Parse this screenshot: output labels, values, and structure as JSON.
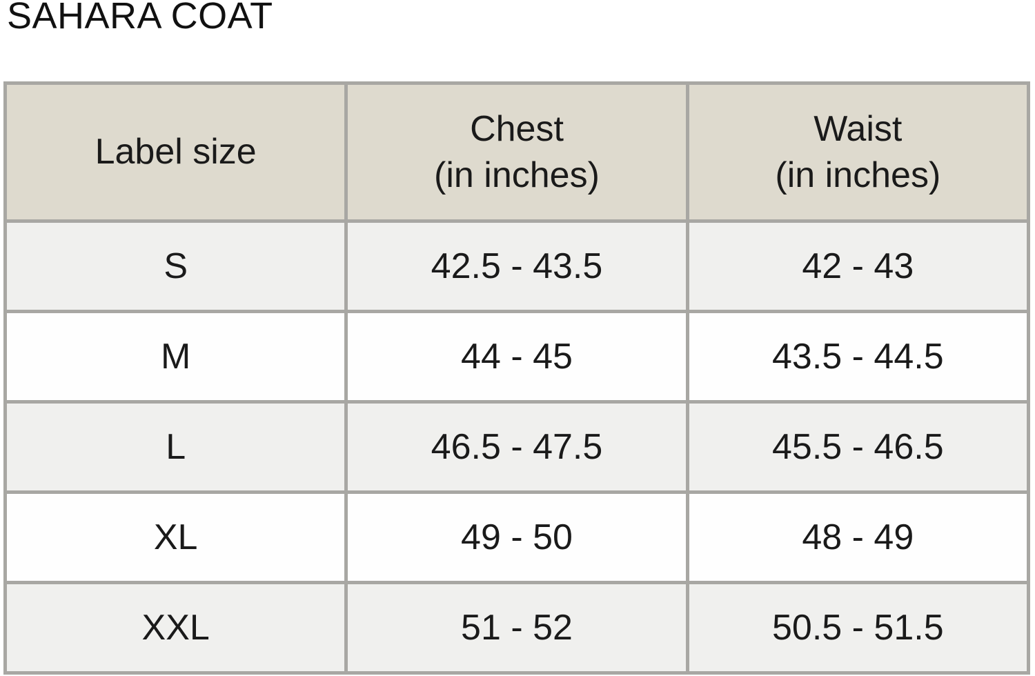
{
  "page_title": "SAHARA COAT",
  "table": {
    "headers": [
      {
        "line1": "Label size",
        "line2": ""
      },
      {
        "line1": "Chest",
        "line2": "(in inches)"
      },
      {
        "line1": "Waist",
        "line2": "(in inches)"
      }
    ],
    "rows": [
      {
        "label": "S",
        "chest": "42.5 - 43.5",
        "waist": "42 - 43"
      },
      {
        "label": "M",
        "chest": "44 - 45",
        "waist": "43.5 - 44.5"
      },
      {
        "label": "L",
        "chest": "46.5 - 47.5",
        "waist": "45.5 - 46.5"
      },
      {
        "label": "XL",
        "chest": "49 - 50",
        "waist": "48 - 49"
      },
      {
        "label": "XXL",
        "chest": "51 - 52",
        "waist": "50.5 - 51.5"
      }
    ]
  },
  "colors": {
    "header_bg": "#dedace",
    "row_alt_bg": "#f0f0ee",
    "row_bg": "#fefefe",
    "border": "#a8a7a3",
    "text": "#1a1a1a",
    "page_bg": "#ffffff"
  },
  "chart_data": {
    "type": "table",
    "title": "SAHARA COAT",
    "columns": [
      "Label size",
      "Chest (in inches)",
      "Waist (in inches)"
    ],
    "rows": [
      [
        "S",
        "42.5 - 43.5",
        "42 - 43"
      ],
      [
        "M",
        "44 - 45",
        "43.5 - 44.5"
      ],
      [
        "L",
        "46.5 - 47.5",
        "45.5 - 46.5"
      ],
      [
        "XL",
        "49 - 50",
        "48 - 49"
      ],
      [
        "XXL",
        "51 - 52",
        "50.5 - 51.5"
      ]
    ]
  }
}
